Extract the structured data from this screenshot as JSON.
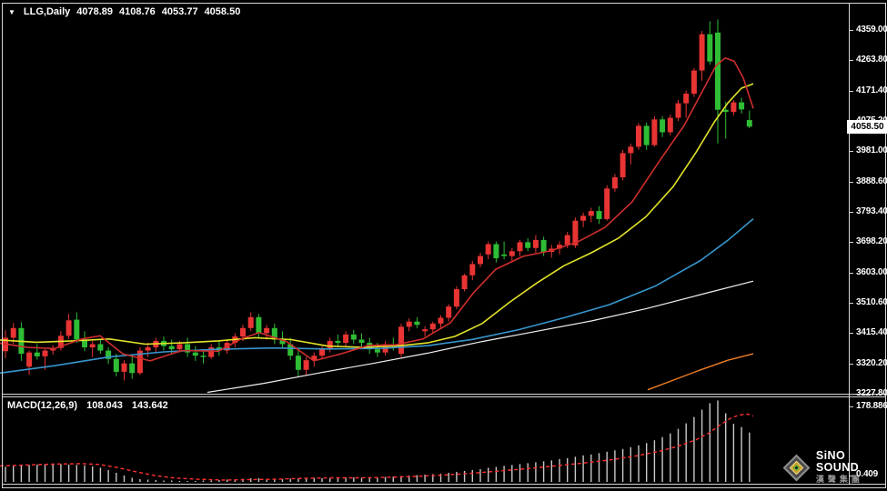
{
  "header": {
    "marker_icon": "▼",
    "symbol": "LLG,Daily",
    "open": "4078.89",
    "high": "4108.76",
    "low": "4053.77",
    "close": "4058.50"
  },
  "indicator": {
    "label": "MACD(12,26,9)",
    "main": "108.043",
    "signal": "143.642"
  },
  "price_axis": {
    "ticks": [
      "4359.00",
      "4263.80",
      "4171.40",
      "4075.20",
      "3981.00",
      "3888.60",
      "3793.40",
      "3698.20",
      "3603.00",
      "3510.60",
      "3415.40",
      "3320.20",
      "3227.80"
    ],
    "current_price": "4058.50"
  },
  "macd_axis": {
    "max": "178.886",
    "min": "0.409"
  },
  "logo": {
    "title": "SiNO SOUND",
    "subtitle": "漢聲集團"
  },
  "colors": {
    "background": "#000000",
    "frame": "#d6d6d6",
    "text": "#ffffff",
    "badge_bg": "#ffffff",
    "badge_text": "#000000"
  },
  "chart_data": {
    "type": "candlestick",
    "title": "LLG Daily with MACD(12,26,9)",
    "y_axis": {
      "top_price": 4359.0,
      "bottom_price": 3227.8
    },
    "up_color": "#e93434",
    "down_color": "#2fbd35",
    "candles": [
      [
        3360,
        3425,
        3338,
        3402
      ],
      [
        3402,
        3448,
        3382,
        3432
      ],
      [
        3432,
        3450,
        3330,
        3352
      ],
      [
        3312,
        3362,
        3286,
        3356
      ],
      [
        3356,
        3382,
        3334,
        3344
      ],
      [
        3344,
        3366,
        3302,
        3362
      ],
      [
        3362,
        3378,
        3350,
        3370
      ],
      [
        3370,
        3422,
        3362,
        3408
      ],
      [
        3408,
        3476,
        3398,
        3456
      ],
      [
        3458,
        3481,
        3386,
        3396
      ],
      [
        3396,
        3422,
        3360,
        3372
      ],
      [
        3372,
        3392,
        3342,
        3382
      ],
      [
        3382,
        3396,
        3352,
        3362
      ],
      [
        3362,
        3372,
        3320,
        3336
      ],
      [
        3336,
        3352,
        3282,
        3296
      ],
      [
        3296,
        3332,
        3269,
        3322
      ],
      [
        3322,
        3346,
        3274,
        3292
      ],
      [
        3292,
        3372,
        3286,
        3362
      ],
      [
        3362,
        3386,
        3342,
        3372
      ],
      [
        3372,
        3402,
        3356,
        3392
      ],
      [
        3392,
        3406,
        3362,
        3376
      ],
      [
        3376,
        3396,
        3352,
        3366
      ],
      [
        3366,
        3392,
        3356,
        3382
      ],
      [
        3382,
        3402,
        3342,
        3356
      ],
      [
        3356,
        3376,
        3330,
        3346
      ],
      [
        3346,
        3366,
        3322,
        3342
      ],
      [
        3342,
        3382,
        3336,
        3372
      ],
      [
        3372,
        3392,
        3346,
        3362
      ],
      [
        3362,
        3396,
        3352,
        3386
      ],
      [
        3386,
        3416,
        3372,
        3406
      ],
      [
        3406,
        3442,
        3392,
        3432
      ],
      [
        3432,
        3481,
        3422,
        3466
      ],
      [
        3466,
        3476,
        3402,
        3416
      ],
      [
        3416,
        3442,
        3396,
        3432
      ],
      [
        3432,
        3446,
        3382,
        3396
      ],
      [
        3396,
        3422,
        3372,
        3382
      ],
      [
        3382,
        3402,
        3332,
        3346
      ],
      [
        3346,
        3362,
        3281,
        3302
      ],
      [
        3302,
        3342,
        3286,
        3332
      ],
      [
        3332,
        3356,
        3312,
        3346
      ],
      [
        3346,
        3376,
        3336,
        3366
      ],
      [
        3366,
        3402,
        3356,
        3392
      ],
      [
        3392,
        3412,
        3372,
        3386
      ],
      [
        3386,
        3422,
        3376,
        3412
      ],
      [
        3412,
        3426,
        3382,
        3396
      ],
      [
        3396,
        3416,
        3372,
        3386
      ],
      [
        3386,
        3402,
        3352,
        3366
      ],
      [
        3366,
        3386,
        3342,
        3356
      ],
      [
        3356,
        3392,
        3346,
        3382
      ],
      [
        3382,
        3402,
        3362,
        3376
      ],
      [
        3352,
        3446,
        3342,
        3436
      ],
      [
        3436,
        3462,
        3422,
        3452
      ],
      [
        3452,
        3466,
        3432,
        3442
      ],
      [
        3422,
        3438,
        3406,
        3428
      ],
      [
        3428,
        3452,
        3416,
        3446
      ],
      [
        3446,
        3472,
        3432,
        3464
      ],
      [
        3464,
        3506,
        3452,
        3499
      ],
      [
        3499,
        3562,
        3491,
        3553
      ],
      [
        3553,
        3601,
        3546,
        3596
      ],
      [
        3596,
        3641,
        3581,
        3631
      ],
      [
        3631,
        3666,
        3621,
        3656
      ],
      [
        3661,
        3701,
        3646,
        3693
      ],
      [
        3693,
        3701,
        3636,
        3649
      ],
      [
        3661,
        3701,
        3646,
        3656
      ],
      [
        3656,
        3681,
        3641,
        3671
      ],
      [
        3671,
        3706,
        3656,
        3699
      ],
      [
        3699,
        3711,
        3671,
        3681
      ],
      [
        3681,
        3721,
        3666,
        3706
      ],
      [
        3706,
        3716,
        3656,
        3669
      ],
      [
        3669,
        3691,
        3651,
        3679
      ],
      [
        3679,
        3701,
        3661,
        3691
      ],
      [
        3691,
        3731,
        3681,
        3721
      ],
      [
        3689,
        3776,
        3681,
        3766
      ],
      [
        3766,
        3791,
        3746,
        3781
      ],
      [
        3781,
        3806,
        3761,
        3796
      ],
      [
        3796,
        3811,
        3756,
        3771
      ],
      [
        3771,
        3876,
        3766,
        3866
      ],
      [
        3866,
        3911,
        3856,
        3901
      ],
      [
        3901,
        3986,
        3891,
        3976
      ],
      [
        3976,
        4006,
        3941,
        3996
      ],
      [
        3996,
        4069,
        3986,
        4061
      ],
      [
        4061,
        4071,
        3986,
        4001
      ],
      [
        4001,
        4091,
        3996,
        4081
      ],
      [
        4081,
        4091,
        4026,
        4041
      ],
      [
        4041,
        4096,
        4031,
        4086
      ],
      [
        4086,
        4141,
        4076,
        4131
      ],
      [
        4131,
        4171,
        4086,
        4161
      ],
      [
        4161,
        4241,
        4151,
        4233
      ],
      [
        4233,
        4356,
        4201,
        4346
      ],
      [
        4346,
        4386,
        4251,
        4261
      ],
      [
        4351,
        4392,
        4006,
        4111
      ],
      [
        4111,
        4136,
        4021,
        4104
      ],
      [
        4104,
        4141,
        4094,
        4134
      ],
      [
        4134,
        4149,
        4099,
        4112
      ],
      [
        4078.89,
        4108.76,
        4053.77,
        4058.5
      ]
    ],
    "moving_averages": [
      {
        "name": "ma-white-slow",
        "color": "#f0f0f0",
        "width": 1.2,
        "points": [
          [
            228,
            3232
          ],
          [
            290,
            3260
          ],
          [
            350,
            3292
          ],
          [
            410,
            3322
          ],
          [
            470,
            3354
          ],
          [
            530,
            3390
          ],
          [
            590,
            3422
          ],
          [
            650,
            3454
          ],
          [
            710,
            3492
          ],
          [
            770,
            3536
          ],
          [
            828,
            3578
          ]
        ]
      },
      {
        "name": "ma-orange",
        "color": "#ef7f26",
        "width": 1.4,
        "points": [
          [
            712,
            3240
          ],
          [
            740,
            3270
          ],
          [
            770,
            3302
          ],
          [
            800,
            3332
          ],
          [
            828,
            3352
          ]
        ]
      },
      {
        "name": "ma-blue",
        "color": "#3796cd",
        "width": 1.6,
        "points": [
          [
            0,
            3292
          ],
          [
            60,
            3315
          ],
          [
            120,
            3342
          ],
          [
            180,
            3358
          ],
          [
            240,
            3366
          ],
          [
            300,
            3370
          ],
          [
            360,
            3367
          ],
          [
            420,
            3369
          ],
          [
            470,
            3377
          ],
          [
            520,
            3397
          ],
          [
            570,
            3427
          ],
          [
            620,
            3464
          ],
          [
            670,
            3505
          ],
          [
            720,
            3562
          ],
          [
            770,
            3642
          ],
          [
            800,
            3705
          ],
          [
            828,
            3772
          ]
        ]
      },
      {
        "name": "ma-yellow",
        "color": "#e3e329",
        "width": 1.6,
        "points": [
          [
            0,
            3395
          ],
          [
            40,
            3388
          ],
          [
            80,
            3392
          ],
          [
            120,
            3398
          ],
          [
            160,
            3382
          ],
          [
            200,
            3386
          ],
          [
            240,
            3392
          ],
          [
            280,
            3402
          ],
          [
            320,
            3396
          ],
          [
            360,
            3376
          ],
          [
            400,
            3372
          ],
          [
            440,
            3377
          ],
          [
            470,
            3386
          ],
          [
            500,
            3406
          ],
          [
            530,
            3446
          ],
          [
            560,
            3512
          ],
          [
            590,
            3572
          ],
          [
            620,
            3626
          ],
          [
            650,
            3666
          ],
          [
            680,
            3712
          ],
          [
            710,
            3778
          ],
          [
            740,
            3872
          ],
          [
            765,
            3978
          ],
          [
            785,
            4072
          ],
          [
            800,
            4132
          ],
          [
            815,
            4178
          ],
          [
            828,
            4192
          ]
        ]
      },
      {
        "name": "ma-red",
        "color": "#cf2e2e",
        "width": 1.6,
        "points": [
          [
            0,
            3385
          ],
          [
            30,
            3372
          ],
          [
            60,
            3368
          ],
          [
            90,
            3398
          ],
          [
            110,
            3408
          ],
          [
            135,
            3352
          ],
          [
            165,
            3330
          ],
          [
            200,
            3362
          ],
          [
            240,
            3360
          ],
          [
            265,
            3398
          ],
          [
            285,
            3418
          ],
          [
            315,
            3390
          ],
          [
            345,
            3330
          ],
          [
            375,
            3352
          ],
          [
            405,
            3378
          ],
          [
            435,
            3380
          ],
          [
            465,
            3398
          ],
          [
            495,
            3448
          ],
          [
            520,
            3540
          ],
          [
            545,
            3615
          ],
          [
            575,
            3655
          ],
          [
            605,
            3672
          ],
          [
            635,
            3700
          ],
          [
            665,
            3745
          ],
          [
            695,
            3825
          ],
          [
            725,
            3952
          ],
          [
            752,
            4062
          ],
          [
            772,
            4168
          ],
          [
            787,
            4248
          ],
          [
            797,
            4272
          ],
          [
            807,
            4262
          ],
          [
            817,
            4210
          ],
          [
            828,
            4115
          ]
        ]
      }
    ],
    "macd": {
      "range": [
        0.409,
        178.886
      ],
      "hist_color": "#c8c8c8",
      "signal_color": "#ff3030",
      "histogram": [
        33,
        35,
        36,
        37,
        38,
        39,
        40,
        39,
        38,
        37,
        36,
        34,
        31,
        26,
        20,
        14,
        9,
        6,
        5,
        4,
        3,
        3,
        2,
        2,
        2,
        3,
        3,
        4,
        5,
        6,
        7,
        8,
        8,
        7,
        6,
        6,
        7,
        8,
        9,
        9,
        8,
        8,
        9,
        10,
        10,
        9,
        9,
        10,
        11,
        12,
        13,
        14,
        15,
        16,
        17,
        18,
        20,
        22,
        24,
        26,
        28,
        31,
        33,
        35,
        37,
        39,
        41,
        43,
        45,
        47,
        50,
        52,
        55,
        58,
        60,
        63,
        66,
        69,
        72,
        76,
        80,
        85,
        91,
        98,
        106,
        116,
        128,
        142,
        158,
        172,
        178,
        150,
        127,
        120,
        108
      ],
      "signal_points": [
        [
          0,
          35
        ],
        [
          30,
          37
        ],
        [
          60,
          39
        ],
        [
          90,
          40
        ],
        [
          110,
          38
        ],
        [
          130,
          31
        ],
        [
          150,
          22
        ],
        [
          170,
          14
        ],
        [
          190,
          9
        ],
        [
          215,
          6
        ],
        [
          245,
          4
        ],
        [
          275,
          5
        ],
        [
          305,
          6
        ],
        [
          335,
          8
        ],
        [
          365,
          9
        ],
        [
          395,
          9
        ],
        [
          425,
          10
        ],
        [
          455,
          12
        ],
        [
          487,
          15
        ],
        [
          520,
          19
        ],
        [
          550,
          24
        ],
        [
          580,
          29
        ],
        [
          610,
          35
        ],
        [
          640,
          41
        ],
        [
          670,
          48
        ],
        [
          700,
          57
        ],
        [
          725,
          67
        ],
        [
          745,
          78
        ],
        [
          765,
          92
        ],
        [
          780,
          108
        ],
        [
          792,
          125
        ],
        [
          802,
          138
        ],
        [
          812,
          146
        ],
        [
          822,
          148
        ],
        [
          828,
          144
        ]
      ]
    }
  }
}
